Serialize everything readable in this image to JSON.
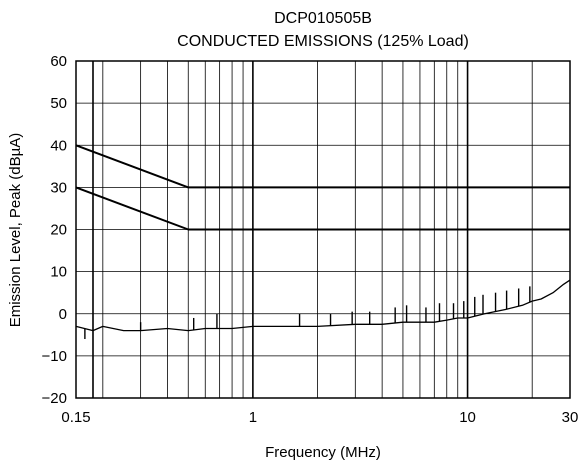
{
  "chart_data": {
    "type": "line",
    "title": "DCP010505B",
    "subtitle": "CONDUCTED EMISSIONS (125% Load)",
    "xlabel": "Frequency (MHz)",
    "ylabel": "Emission Level, Peak (dBµA)",
    "xscale": "log",
    "xlim": [
      0.15,
      30
    ],
    "ylim": [
      -20,
      60
    ],
    "xticks": [
      0.15,
      1,
      10,
      30
    ],
    "xtick_labels": [
      "0.15",
      "1",
      "10",
      "30"
    ],
    "yticks": [
      -20,
      -10,
      0,
      10,
      20,
      30,
      40,
      50,
      60
    ],
    "ytick_labels": [
      "−20",
      "−10",
      "0",
      "10",
      "20",
      "30",
      "40",
      "50",
      "60"
    ],
    "grid": true,
    "series": [
      {
        "color": "#000000",
        "x": [
          0.15,
          0.5,
          30
        ],
        "y": [
          40,
          30,
          30
        ]
      },
      {
        "color": "#000000",
        "x": [
          0.15,
          0.5,
          30
        ],
        "y": [
          30,
          20,
          20
        ]
      },
      {
        "color": "#000000",
        "x": [
          0.15,
          0.18,
          0.2,
          0.25,
          0.3,
          0.4,
          0.5,
          0.6,
          0.8,
          1.0,
          1.5,
          2.0,
          3.0,
          4.0,
          5.0,
          6.0,
          7.0,
          8.0,
          9.0,
          10.0,
          12.0,
          15.0,
          18.0,
          20.0,
          22.0,
          25.0,
          28.0,
          30.0
        ],
        "y": [
          -3,
          -4,
          -3,
          -4,
          -4,
          -3.5,
          -4,
          -3.5,
          -3.5,
          -3,
          -3,
          -3,
          -2.5,
          -2.5,
          -2,
          -2,
          -2,
          -1.5,
          -1,
          -1,
          0,
          1,
          2,
          3,
          3.5,
          5,
          7,
          8
        ]
      }
    ],
    "spikes": [
      {
        "x": 0.165,
        "y": -6
      },
      {
        "x": 0.3,
        "y": -2
      },
      {
        "x": 0.53,
        "y": -1
      },
      {
        "x": 0.68,
        "y": 0
      },
      {
        "x": 1.65,
        "y": 0
      },
      {
        "x": 2.3,
        "y": 0
      },
      {
        "x": 2.9,
        "y": 0.5
      },
      {
        "x": 3.5,
        "y": 0.5
      },
      {
        "x": 4.6,
        "y": 1.5
      },
      {
        "x": 5.2,
        "y": 2
      },
      {
        "x": 6.4,
        "y": 1.5
      },
      {
        "x": 7.4,
        "y": 2.5
      },
      {
        "x": 8.6,
        "y": 2.5
      },
      {
        "x": 9.6,
        "y": 3
      },
      {
        "x": 10.8,
        "y": 4
      },
      {
        "x": 11.8,
        "y": 4.5
      },
      {
        "x": 13.5,
        "y": 5
      },
      {
        "x": 15.2,
        "y": 5.5
      },
      {
        "x": 17.3,
        "y": 6
      },
      {
        "x": 19.5,
        "y": 6.5
      }
    ]
  }
}
